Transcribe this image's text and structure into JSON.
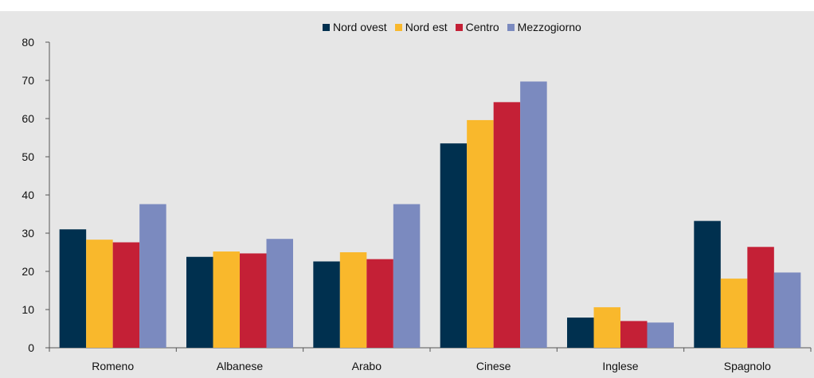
{
  "chart_data": {
    "type": "bar",
    "title": "",
    "categories": [
      "Romeno",
      "Albanese",
      "Arabo",
      "Cinese",
      "Inglese",
      "Spagnolo"
    ],
    "series": [
      {
        "name": "Nord ovest",
        "color": "#00304f",
        "values": [
          31.0,
          23.8,
          22.6,
          53.5,
          7.9,
          33.2
        ]
      },
      {
        "name": "Nord est",
        "color": "#f9b82c",
        "values": [
          28.3,
          25.2,
          25.0,
          59.6,
          10.6,
          18.1
        ]
      },
      {
        "name": "Centro",
        "color": "#c42036",
        "values": [
          27.6,
          24.7,
          23.2,
          64.3,
          7.0,
          26.4
        ]
      },
      {
        "name": "Mezzogiorno",
        "color": "#7b8abf",
        "values": [
          37.6,
          28.5,
          37.6,
          69.7,
          6.6,
          19.7
        ]
      }
    ],
    "ylim": [
      0,
      80
    ],
    "yticks": [
      0,
      10,
      20,
      30,
      40,
      50,
      60,
      70,
      80
    ],
    "xlabel": "",
    "ylabel": "",
    "grid": false,
    "legend_position": "top",
    "background": "#e6e6e6"
  }
}
